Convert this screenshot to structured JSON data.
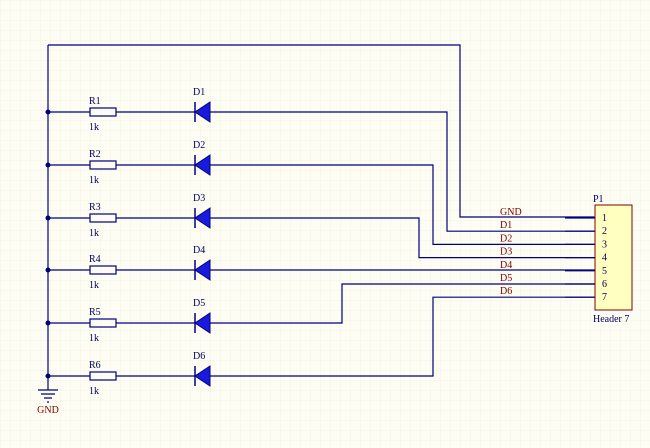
{
  "rows": [
    {
      "resistor": "R1",
      "value": "1k",
      "diode": "D1"
    },
    {
      "resistor": "R2",
      "value": "1k",
      "diode": "D2"
    },
    {
      "resistor": "R3",
      "value": "1k",
      "diode": "D3"
    },
    {
      "resistor": "R4",
      "value": "1k",
      "diode": "D4"
    },
    {
      "resistor": "R5",
      "value": "1k",
      "diode": "D5"
    },
    {
      "resistor": "R6",
      "value": "1k",
      "diode": "D6"
    }
  ],
  "net_labels": [
    "GND",
    "D1",
    "D2",
    "D3",
    "D4",
    "D5",
    "D6"
  ],
  "header": {
    "designator": "P1",
    "name": "Header 7",
    "pins": [
      "1",
      "2",
      "3",
      "4",
      "5",
      "6",
      "7"
    ]
  },
  "power": {
    "label": "GND"
  }
}
